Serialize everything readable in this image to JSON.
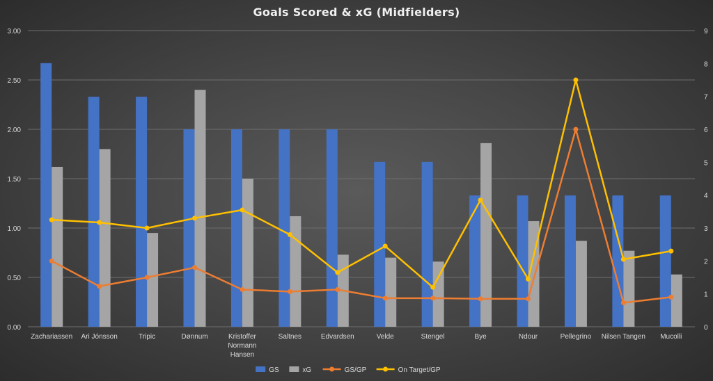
{
  "chart_data": {
    "type": "bar",
    "title": "Goals Scored & xG (Midfielders)",
    "categories": [
      "Zachariassen",
      "Ari Jónsson",
      "Tripic",
      "Dønnum",
      "Kristoffer\nNormann\nHansen",
      "Saltnes",
      "Edvardsen",
      "Velde",
      "Stengel",
      "Bye",
      "Ndour",
      "Pellegrino",
      "Nilsen Tangen",
      "Mucolli"
    ],
    "series": [
      {
        "name": "GS",
        "kind": "bar",
        "axis": "left",
        "color": "#4472c4",
        "values": [
          2.67,
          2.33,
          2.33,
          2.0,
          2.0,
          2.0,
          2.0,
          1.67,
          1.67,
          1.33,
          1.33,
          1.33,
          1.33,
          1.33
        ]
      },
      {
        "name": "xG",
        "kind": "bar",
        "axis": "left",
        "color": "#a5a5a5",
        "values": [
          1.62,
          1.8,
          0.95,
          2.4,
          1.5,
          1.12,
          0.73,
          0.7,
          0.66,
          1.86,
          1.07,
          0.87,
          0.77,
          0.53
        ]
      },
      {
        "name": "GS/GP",
        "kind": "line",
        "axis": "right",
        "color": "#ed7d31",
        "values": [
          2.0,
          1.23,
          1.5,
          1.8,
          1.13,
          1.07,
          1.13,
          0.87,
          0.87,
          0.85,
          0.85,
          6.0,
          0.73,
          0.9
        ]
      },
      {
        "name": "On Target/GP",
        "kind": "line",
        "axis": "right",
        "color": "#ffc000",
        "values": [
          3.25,
          3.17,
          3.0,
          3.3,
          3.55,
          2.8,
          1.65,
          2.45,
          1.2,
          3.85,
          1.45,
          7.5,
          2.05,
          2.3
        ]
      }
    ],
    "y_left": {
      "min": 0,
      "max": 3,
      "step": 0.5,
      "tick_labels": [
        "0.00",
        "0.50",
        "1.00",
        "1.50",
        "2.00",
        "2.50",
        "3.00"
      ]
    },
    "y_right": {
      "min": 0,
      "max": 9,
      "step": 1,
      "tick_labels": [
        "0",
        "1",
        "2",
        "3",
        "4",
        "5",
        "6",
        "7",
        "8",
        "9"
      ]
    },
    "grid": true,
    "legend_position": "bottom"
  }
}
